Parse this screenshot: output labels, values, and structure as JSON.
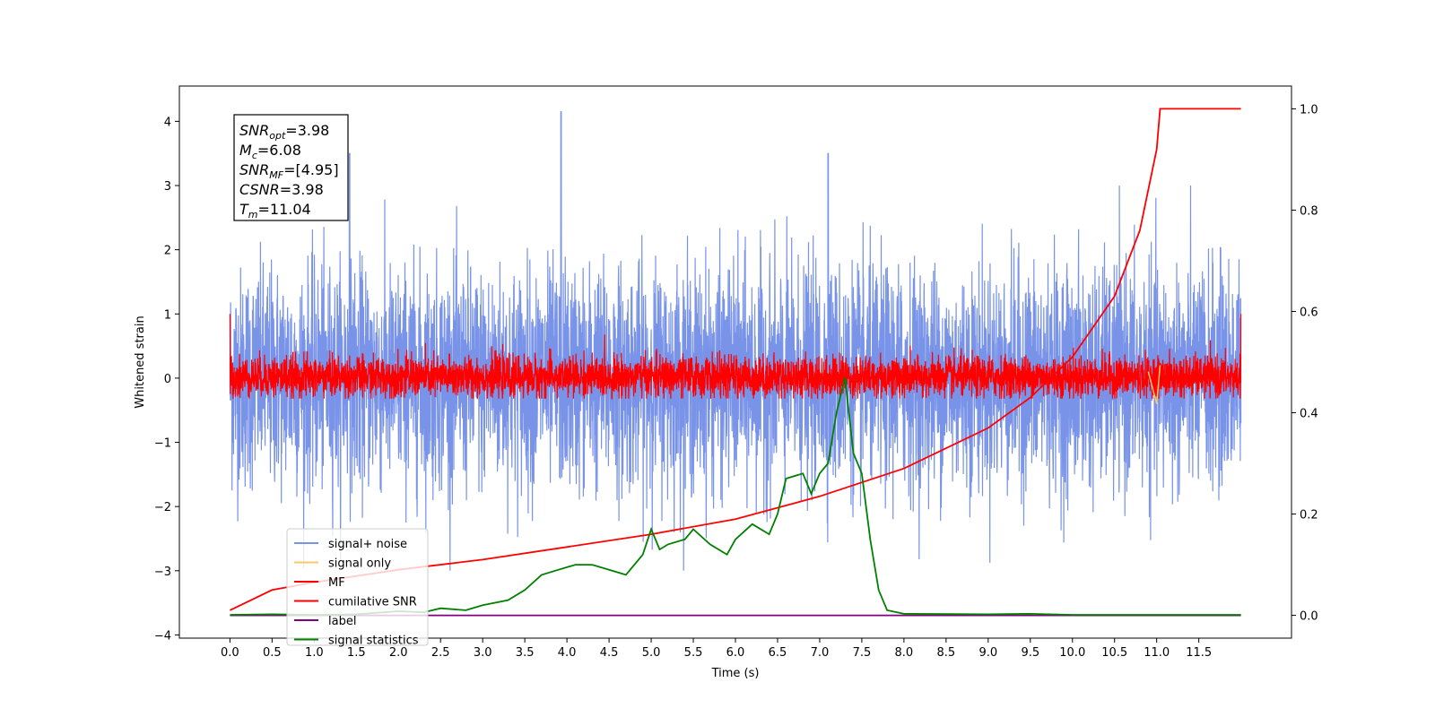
{
  "chart_data": {
    "type": "line",
    "title": "",
    "xlabel": "Time (s)",
    "ylabel": "Whitened strain",
    "xlim": [
      -0.6,
      12.6
    ],
    "ylim": [
      -4.05,
      4.55
    ],
    "ylim_right": [
      -0.045,
      1.045
    ],
    "grid": false,
    "legend_position": "lower-left",
    "x_ticks": [
      "0.0",
      "0.5",
      "1.0",
      "1.5",
      "2.0",
      "2.5",
      "3.0",
      "3.5",
      "4.0",
      "4.5",
      "5.0",
      "5.5",
      "6.0",
      "6.5",
      "7.0",
      "7.5",
      "8.0",
      "8.5",
      "9.0",
      "9.5",
      "10.0",
      "10.5",
      "11.0",
      "11.5"
    ],
    "y_ticks": [
      4,
      3,
      2,
      1,
      0,
      -1,
      -2,
      -3,
      -4
    ],
    "y_ticks_right": [
      "1.0",
      "0.8",
      "0.6",
      "0.4",
      "0.2",
      "0.0"
    ],
    "annotations": [
      {
        "sym": "SNR",
        "sub": "opt",
        "val": "=3.98"
      },
      {
        "sym": "M",
        "sub": "c",
        "val": "=6.08"
      },
      {
        "sym": "SNR",
        "sub": "MF",
        "val": "=[4.95]"
      },
      {
        "sym": "CSNR",
        "sub": "",
        "val": "=3.98"
      },
      {
        "sym": "T",
        "sub": "m",
        "val": "=11.04"
      }
    ],
    "series": [
      {
        "name": "signal+ noise",
        "color": "#7893e8",
        "axis": "left",
        "description_values": {
          "x_range": [
            0,
            12
          ],
          "y_range": [
            -3.6,
            4.15
          ],
          "peaks": [
            [
              3.93,
              4.15
            ],
            [
              7.1,
              3.5
            ],
            [
              1.42,
              3.5
            ]
          ]
        }
      },
      {
        "name": "signal only",
        "color": "#f7c96b",
        "axis": "left",
        "values": [
          [
            10.9,
            0.1
          ],
          [
            11.0,
            -0.4
          ],
          [
            11.04,
            0.2
          ]
        ]
      },
      {
        "name": "MF",
        "color": "#ff0000",
        "axis": "left",
        "description_values": {
          "x_range": [
            0,
            12
          ],
          "y_range": [
            -0.35,
            1.0
          ]
        }
      },
      {
        "name": "cumilative SNR",
        "color": "#ff0000",
        "axis": "right",
        "values": [
          [
            0.0,
            0.01
          ],
          [
            0.5,
            0.05
          ],
          [
            1.0,
            0.065
          ],
          [
            2.0,
            0.09
          ],
          [
            3.0,
            0.11
          ],
          [
            4.0,
            0.135
          ],
          [
            5.0,
            0.16
          ],
          [
            6.0,
            0.19
          ],
          [
            7.0,
            0.235
          ],
          [
            8.0,
            0.29
          ],
          [
            9.0,
            0.37
          ],
          [
            9.5,
            0.43
          ],
          [
            10.0,
            0.51
          ],
          [
            10.5,
            0.63
          ],
          [
            10.8,
            0.76
          ],
          [
            11.0,
            0.92
          ],
          [
            11.04,
            1.0
          ],
          [
            11.5,
            1.0
          ],
          [
            12.0,
            1.0
          ]
        ]
      },
      {
        "name": "label",
        "color": "#800080",
        "axis": "right",
        "values": [
          [
            0.0,
            0.0
          ],
          [
            12.0,
            0.0
          ]
        ]
      },
      {
        "name": "signal statistics",
        "color": "#008000",
        "axis": "right",
        "values": [
          [
            0.0,
            0.001
          ],
          [
            0.5,
            0.002
          ],
          [
            1.0,
            0.001
          ],
          [
            1.5,
            0.002
          ],
          [
            2.0,
            0.008
          ],
          [
            2.3,
            0.006
          ],
          [
            2.5,
            0.014
          ],
          [
            2.8,
            0.01
          ],
          [
            3.0,
            0.02
          ],
          [
            3.3,
            0.03
          ],
          [
            3.5,
            0.05
          ],
          [
            3.7,
            0.08
          ],
          [
            3.9,
            0.09
          ],
          [
            4.1,
            0.1
          ],
          [
            4.3,
            0.1
          ],
          [
            4.5,
            0.09
          ],
          [
            4.7,
            0.08
          ],
          [
            4.9,
            0.12
          ],
          [
            5.0,
            0.17
          ],
          [
            5.1,
            0.13
          ],
          [
            5.2,
            0.14
          ],
          [
            5.4,
            0.15
          ],
          [
            5.5,
            0.17
          ],
          [
            5.7,
            0.14
          ],
          [
            5.9,
            0.12
          ],
          [
            6.0,
            0.15
          ],
          [
            6.2,
            0.18
          ],
          [
            6.4,
            0.16
          ],
          [
            6.5,
            0.2
          ],
          [
            6.6,
            0.27
          ],
          [
            6.8,
            0.28
          ],
          [
            6.9,
            0.24
          ],
          [
            7.0,
            0.28
          ],
          [
            7.1,
            0.3
          ],
          [
            7.2,
            0.4
          ],
          [
            7.3,
            0.47
          ],
          [
            7.4,
            0.32
          ],
          [
            7.5,
            0.28
          ],
          [
            7.6,
            0.15
          ],
          [
            7.7,
            0.05
          ],
          [
            7.8,
            0.01
          ],
          [
            8.0,
            0.003
          ],
          [
            9.0,
            0.002
          ],
          [
            9.5,
            0.003
          ],
          [
            10.0,
            0.001
          ],
          [
            12.0,
            0.001
          ]
        ]
      }
    ]
  }
}
